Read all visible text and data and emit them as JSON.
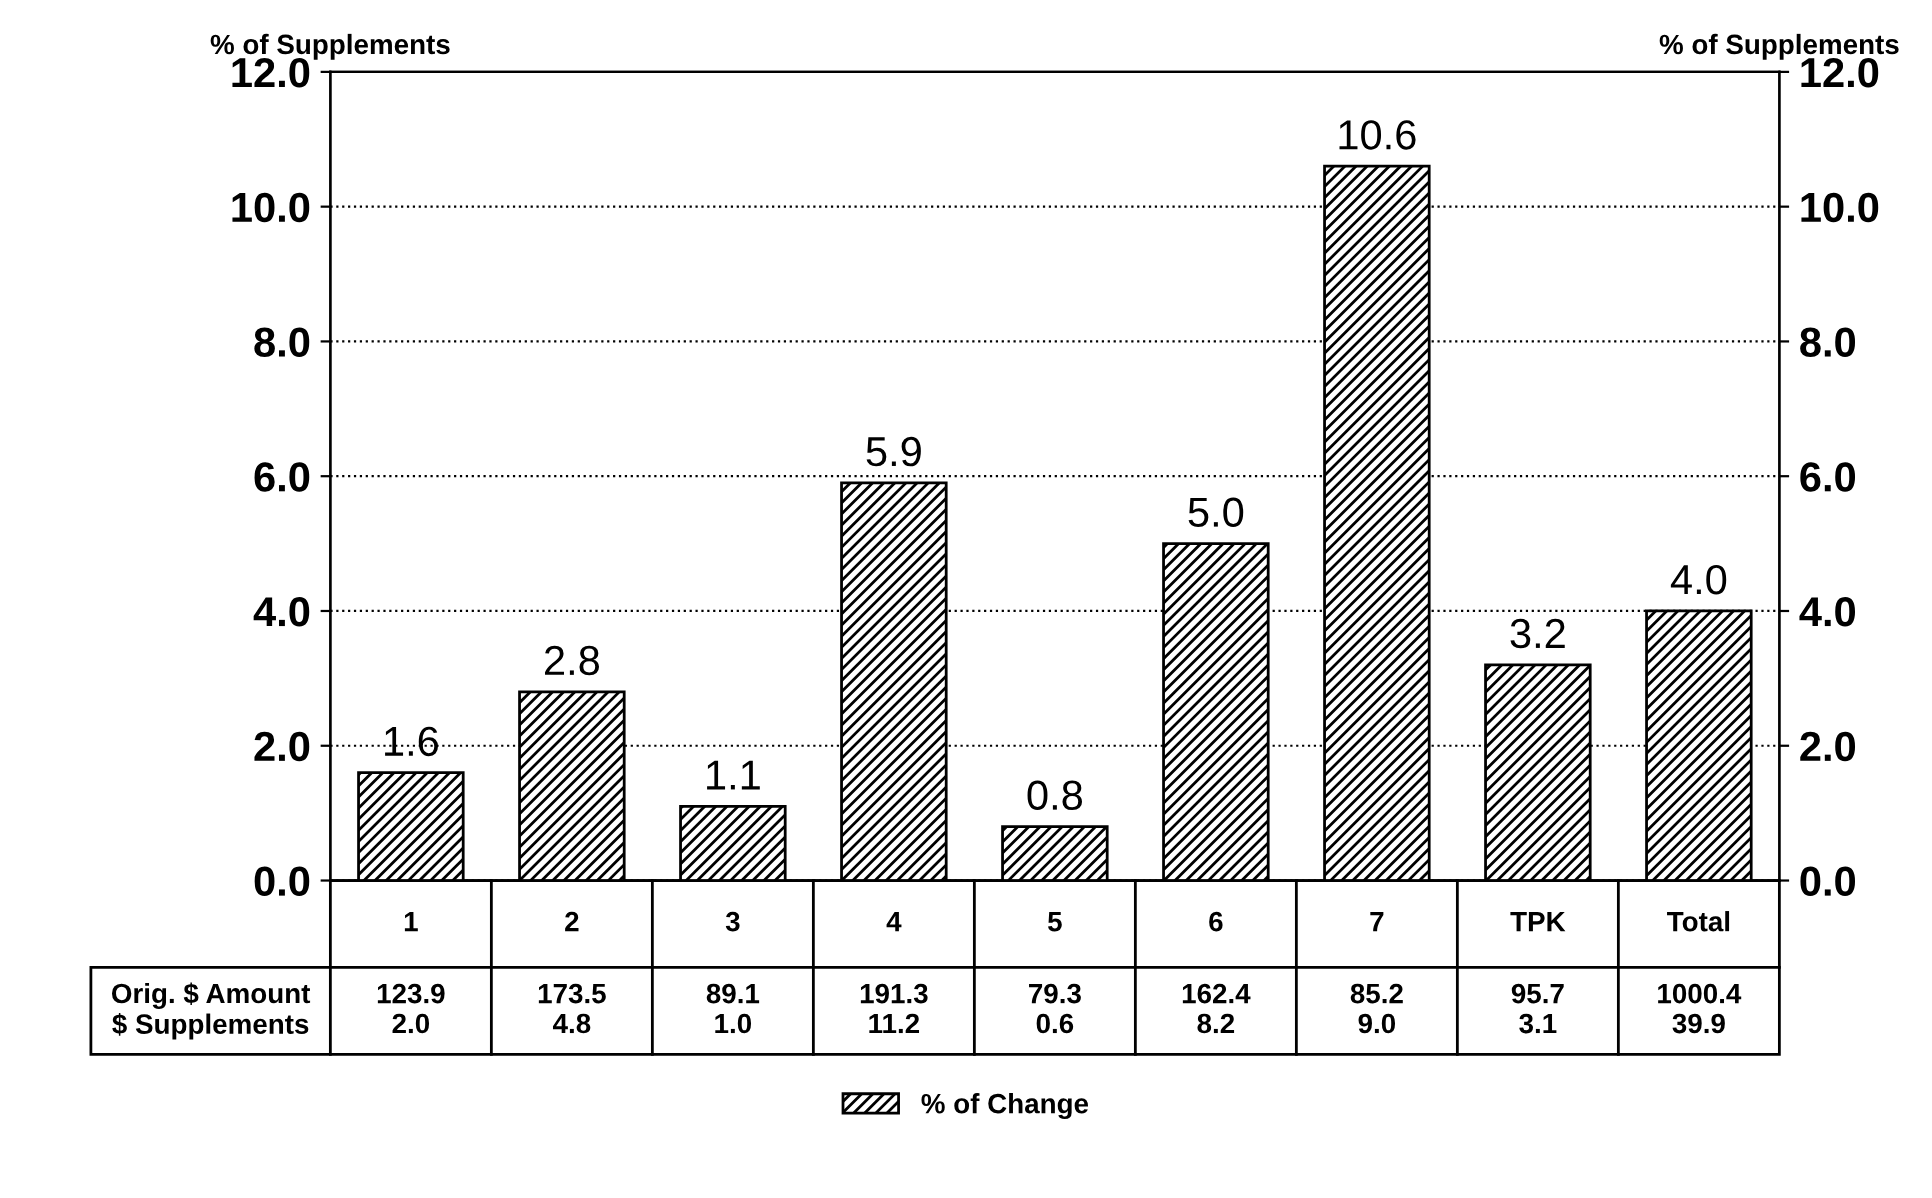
{
  "chart_data": {
    "type": "bar",
    "ylabel": "% of Supplements",
    "y2label": "% of Supplements",
    "categories": [
      "1",
      "2",
      "3",
      "4",
      "5",
      "6",
      "7",
      "TPK",
      "Total"
    ],
    "series": [
      {
        "name": "% of Change",
        "color": "#000000",
        "values": [
          1.6,
          2.8,
          1.1,
          5.9,
          0.8,
          5.0,
          10.6,
          3.2,
          4.0
        ],
        "value_labels": [
          "1.6",
          "2.8",
          "1.1",
          "5.9",
          "0.8",
          "5.0",
          "10.6",
          "3.2",
          "4.0"
        ]
      }
    ],
    "ylim": [
      0,
      12
    ],
    "yticks": [
      {
        "value": 0,
        "label": "0.0"
      },
      {
        "value": 2,
        "label": "2.0"
      },
      {
        "value": 4,
        "label": "4.0"
      },
      {
        "value": 6,
        "label": "6.0"
      },
      {
        "value": 8,
        "label": "8.0"
      },
      {
        "value": 10,
        "label": "10.0"
      },
      {
        "value": 12,
        "label": "12.0"
      }
    ],
    "y2lim": [
      0,
      12
    ],
    "y2ticks": [
      {
        "value": 0,
        "label": "0.0"
      },
      {
        "value": 2,
        "label": "2.0"
      },
      {
        "value": 4,
        "label": "4.0"
      },
      {
        "value": 6,
        "label": "6.0"
      },
      {
        "value": 8,
        "label": "8.0"
      },
      {
        "value": 10,
        "label": "10.0"
      },
      {
        "value": 12,
        "label": "12.0"
      }
    ],
    "grid": "y",
    "legend": "bottom",
    "annotations": [
      "Orig. $ Amount",
      "123.9",
      "173.5",
      "89.1",
      "191.3",
      "79.3",
      "162.4",
      "85.2",
      "95.7",
      "1000.4",
      "$ Supplements",
      "2.0",
      "4.8",
      "1.0",
      "11.2",
      "0.6",
      "8.2",
      "9.0",
      "3.1",
      "39.9"
    ]
  }
}
